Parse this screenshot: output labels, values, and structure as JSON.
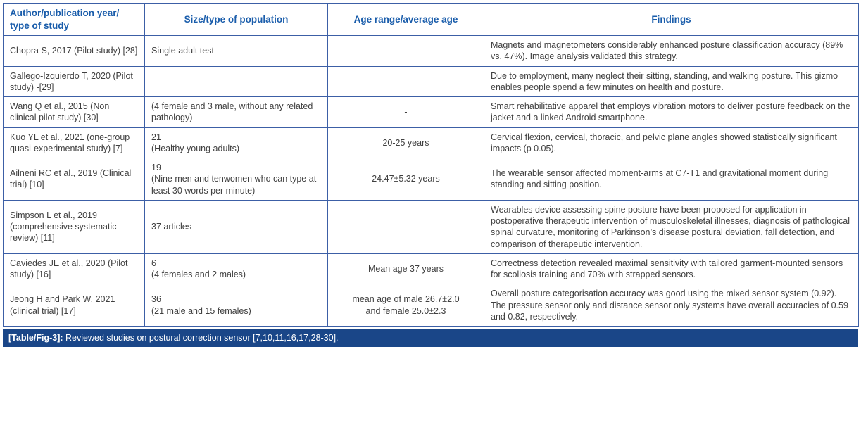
{
  "colors": {
    "table_border": "#3c5fa6",
    "header_text": "#1a5dab",
    "body_text": "#3f3f3f",
    "caption_background": "#1a4688",
    "caption_text": "#ffffff"
  },
  "header": {
    "columns": [
      "Author/publication year/\ntype of study",
      "Size/type of population",
      "Age range/average age",
      "Findings"
    ]
  },
  "rows": [
    {
      "author": "Chopra S, 2017 (Pilot study) [28]",
      "population": "Single adult test",
      "age": "-",
      "findings": "Magnets and magnetometers considerably enhanced posture classification accuracy (89% vs. 47%). Image analysis validated this strategy."
    },
    {
      "author": "Gallego-Izquierdo T, 2020 (Pilot study) -[29]",
      "population": "-",
      "age": "-",
      "findings": "Due to employment, many neglect their sitting, standing, and walking posture. This gizmo enables people spend a few minutes on health and posture."
    },
    {
      "author": "Wang Q et al., 2015 (Non clinical pilot study) [30]",
      "population": "(4 female and 3 male, without any related pathology)",
      "age": "-",
      "findings": "Smart rehabilitative apparel that employs vibration motors to deliver posture feedback on the jacket and a linked Android smartphone."
    },
    {
      "author": "Kuo YL et al., 2021 (one-group quasi-experimental study) [7]",
      "population": "21\n(Healthy young adults)",
      "age": "20-25 years",
      "findings": "Cervical flexion, cervical, thoracic, and pelvic plane angles showed statistically significant impacts (p 0.05)."
    },
    {
      "author": "Ailneni RC et al., 2019 (Clinical trial) [10]",
      "population": "19\n(Nine men and tenwomen who can type at least 30 words per minute)",
      "age": "24.47±5.32 years",
      "findings": "The wearable sensor affected moment-arms at C7-T1 and gravitational moment during standing and sitting position."
    },
    {
      "author": "Simpson L et al., 2019 (comprehensive systematic review) [11]",
      "population": "37 articles",
      "age": "-",
      "findings": "Wearables device assessing spine posture have been proposed for application in postoperative therapeutic intervention of musculoskeletal illnesses, diagnosis of pathological spinal curvature, monitoring of Parkinson’s disease postural deviation, fall detection, and comparison of therapeutic intervention."
    },
    {
      "author": "Caviedes JE et al., 2020 (Pilot study) [16]",
      "population": "6\n(4 females and 2 males)",
      "age": "Mean age 37 years",
      "findings": "Correctness detection revealed maximal sensitivity with tailored garment-mounted sensors for scoliosis training and 70% with strapped sensors."
    },
    {
      "author": "Jeong H and Park W, 2021 (clinical trial) [17]",
      "population": "36\n(21 male and 15 females)",
      "age": "mean age of male 26.7±2.0\nand female 25.0±2.3",
      "findings": "Overall posture categorisation accuracy was good using the mixed sensor system (0.92). The pressure sensor only and distance sensor only systems have overall accuracies of 0.59 and 0.82, respectively."
    }
  ],
  "caption": {
    "label": "[Table/Fig-3]:",
    "text": " Reviewed studies on postural correction sensor [7,10,11,16,17,28-30]."
  }
}
